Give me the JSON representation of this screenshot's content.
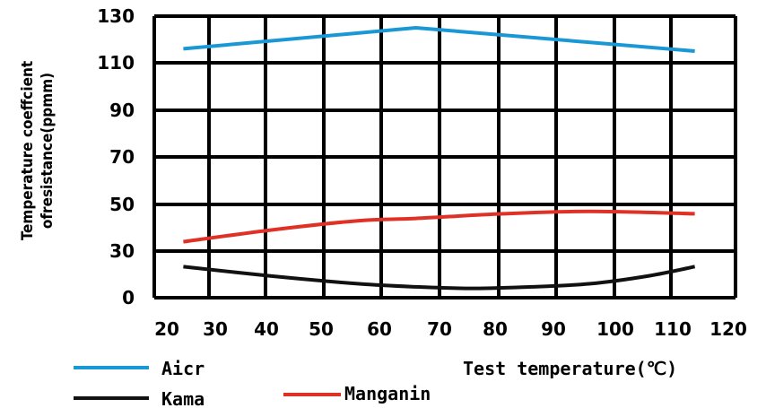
{
  "chart_data": {
    "type": "line",
    "ylabel_line1": "Temperature coeffcient",
    "ylabel_line2": "ofresistance(ppmm)",
    "xlabel": "Test temperature(℃)",
    "xlim": [
      20,
      120
    ],
    "ylim": [
      0,
      130
    ],
    "x_ticks": [
      "20",
      "30",
      "40",
      "50",
      "60",
      "70",
      "80",
      "90",
      "100",
      "110",
      "120"
    ],
    "y_ticks": [
      "0",
      "30",
      "50",
      "70",
      "90",
      "110",
      "130"
    ],
    "grid": true,
    "legend_position": "bottom",
    "series": [
      {
        "name": "Aicr",
        "color": "#1a98d6",
        "x": [
          25,
          65,
          113
        ],
        "y": [
          116,
          125,
          115
        ]
      },
      {
        "name": "Kama",
        "color": "#111111",
        "x": [
          25,
          40,
          55,
          65,
          75,
          85,
          95,
          105,
          113
        ],
        "y": [
          20,
          14,
          9,
          7,
          6,
          7,
          9,
          14,
          20
        ]
      },
      {
        "name": "Manganin",
        "color": "#e03126",
        "x": [
          25,
          40,
          55,
          65,
          80,
          95,
          113
        ],
        "y": [
          34,
          39,
          43,
          44,
          46,
          47,
          46
        ]
      }
    ]
  }
}
